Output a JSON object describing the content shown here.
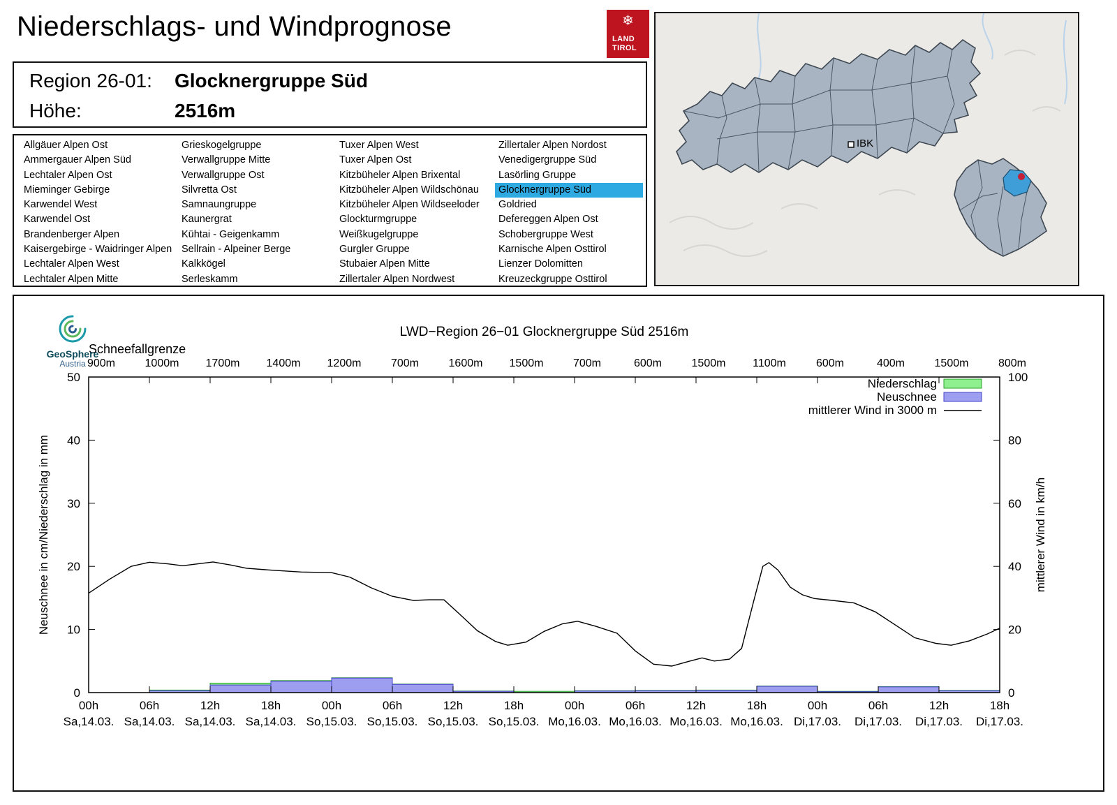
{
  "title": "Niederschlags- und Windprognose",
  "colors": {
    "accent_blue": "#2FA9E1",
    "tirol_red": "#BE1420",
    "bar_green": "#8EF08E",
    "bar_blue": "#9E9EF0"
  },
  "logo": {
    "snowflake_icon": "❄",
    "line1": "LAND",
    "line2": "TIROL"
  },
  "region_header": {
    "region_label": "Region 26-01:",
    "region_value": "Glocknergruppe Süd",
    "altitude_label": "Höhe:",
    "altitude_value": "2516m"
  },
  "region_list": {
    "selected": "Glocknergruppe Süd",
    "columns": [
      [
        "Allgäuer Alpen Ost",
        "Ammergauer Alpen Süd",
        "Lechtaler Alpen Ost",
        "Mieminger Gebirge",
        "Karwendel West",
        "Karwendel Ost",
        "Brandenberger Alpen",
        "Kaisergebirge - Waidringer Alpen",
        "Lechtaler Alpen West",
        "Lechtaler Alpen Mitte"
      ],
      [
        "Grieskogelgruppe",
        "Verwallgruppe Mitte",
        "Verwallgruppe Ost",
        "Silvretta Ost",
        "Samnaungruppe",
        "Kaunergrat",
        "Kühtai - Geigenkamm",
        "Sellrain - Alpeiner Berge",
        "Kalkkögel",
        "Serleskamm"
      ],
      [
        "Tuxer Alpen West",
        "Tuxer Alpen Ost",
        "Kitzbüheler Alpen Brixental",
        "Kitzbüheler Alpen Wildschönau",
        "Kitzbüheler Alpen Wildseeloder",
        "Glockturmgruppe",
        "Weißkugelgruppe",
        "Gurgler Gruppe",
        "Stubaier Alpen Mitte",
        "Zillertaler Alpen Nordwest"
      ],
      [
        "Zillertaler Alpen Nordost",
        "Venedigergruppe Süd",
        "Lasörling Gruppe",
        "Glocknergruppe Süd",
        "Goldried",
        "Defereggen Alpen Ost",
        "Schobergruppe West",
        "Karnische Alpen Osttirol",
        "Lienzer Dolomitten",
        "Kreuzeckgruppe Osttirol"
      ]
    ]
  },
  "map": {
    "city_label": "IBK"
  },
  "geosphere": {
    "name": "GeoSphere",
    "country": "Austria"
  },
  "chart_data": {
    "type": "bar+line",
    "title": "LWD−Region 26−01 Glocknergruppe Süd 2516m",
    "snowline_label": "Schneefallgrenze",
    "snowline_values": [
      "900m",
      "1000m",
      "1700m",
      "1400m",
      "1200m",
      "700m",
      "1600m",
      "1500m",
      "700m",
      "600m",
      "1500m",
      "1100m",
      "600m",
      "400m",
      "1500m",
      "800m"
    ],
    "x_ticks": [
      {
        "time": "00h",
        "date": "Sa,14.03."
      },
      {
        "time": "06h",
        "date": "Sa,14.03."
      },
      {
        "time": "12h",
        "date": "Sa,14.03."
      },
      {
        "time": "18h",
        "date": "Sa,14.03."
      },
      {
        "time": "00h",
        "date": "So,15.03."
      },
      {
        "time": "06h",
        "date": "So,15.03."
      },
      {
        "time": "12h",
        "date": "So,15.03."
      },
      {
        "time": "18h",
        "date": "So,15.03."
      },
      {
        "time": "00h",
        "date": "Mo,16.03."
      },
      {
        "time": "06h",
        "date": "Mo,16.03."
      },
      {
        "time": "12h",
        "date": "Mo,16.03."
      },
      {
        "time": "18h",
        "date": "Mo,16.03."
      },
      {
        "time": "00h",
        "date": "Di,17.03."
      },
      {
        "time": "06h",
        "date": "Di,17.03."
      },
      {
        "time": "12h",
        "date": "Di,17.03."
      },
      {
        "time": "18h",
        "date": "Di,17.03."
      }
    ],
    "ylabel_left": "Neuschnee in cm/Niederschlag in mm",
    "ylabel_right": "mittlerer Wind in km/h",
    "ylim_left": [
      0,
      50
    ],
    "ylim_right": [
      0,
      100
    ],
    "y_ticks_left": [
      0,
      10,
      20,
      30,
      40,
      50
    ],
    "y_ticks_right": [
      0,
      20,
      40,
      60,
      80,
      100
    ],
    "legend": [
      {
        "label": "Niederschlag",
        "type": "box",
        "fill": "#8EF08E",
        "stroke": "#2CA02C"
      },
      {
        "label": "Neuschnee",
        "type": "box",
        "fill": "#9E9EF0",
        "stroke": "#4444CC"
      },
      {
        "label": "mittlerer Wind in 3000 m",
        "type": "line",
        "stroke": "#000000"
      }
    ],
    "series": {
      "niederschlag_mm": [
        0,
        0.4,
        1.5,
        1.9,
        2.35,
        1.35,
        0.25,
        0.2,
        0.3,
        0.35,
        0.4,
        1.05,
        0.2,
        0.95,
        0.35
      ],
      "neuschnee_cm": [
        0,
        0.3,
        1.2,
        1.8,
        2.3,
        1.3,
        0.2,
        0,
        0.25,
        0.3,
        0.35,
        1.0,
        0.15,
        0.9,
        0.3
      ],
      "wind_kmh_points": [
        [
          0,
          31.5
        ],
        [
          0.35,
          36
        ],
        [
          0.7,
          40
        ],
        [
          1.0,
          41.3
        ],
        [
          1.3,
          40.8
        ],
        [
          1.55,
          40.2
        ],
        [
          1.8,
          40.8
        ],
        [
          2.05,
          41.4
        ],
        [
          2.35,
          40.4
        ],
        [
          2.6,
          39.4
        ],
        [
          3.0,
          38.8
        ],
        [
          3.5,
          38.2
        ],
        [
          4.0,
          38.0
        ],
        [
          4.3,
          36.6
        ],
        [
          4.65,
          33.2
        ],
        [
          5.0,
          30.5
        ],
        [
          5.35,
          29.2
        ],
        [
          5.6,
          29.4
        ],
        [
          5.85,
          29.4
        ],
        [
          6.1,
          25.0
        ],
        [
          6.4,
          19.6
        ],
        [
          6.7,
          16.2
        ],
        [
          6.9,
          15.0
        ],
        [
          7.2,
          16.0
        ],
        [
          7.5,
          19.4
        ],
        [
          7.8,
          21.8
        ],
        [
          8.05,
          22.6
        ],
        [
          8.35,
          21.0
        ],
        [
          8.7,
          18.8
        ],
        [
          9.0,
          13.2
        ],
        [
          9.3,
          9.0
        ],
        [
          9.6,
          8.4
        ],
        [
          9.9,
          10.0
        ],
        [
          10.1,
          11.0
        ],
        [
          10.3,
          10.0
        ],
        [
          10.55,
          10.6
        ],
        [
          10.75,
          14.0
        ],
        [
          10.95,
          29.0
        ],
        [
          11.1,
          40.0
        ],
        [
          11.2,
          41.2
        ],
        [
          11.35,
          38.8
        ],
        [
          11.55,
          33.4
        ],
        [
          11.75,
          31.0
        ],
        [
          11.95,
          29.8
        ],
        [
          12.25,
          29.2
        ],
        [
          12.6,
          28.4
        ],
        [
          12.95,
          25.6
        ],
        [
          13.3,
          21.2
        ],
        [
          13.6,
          17.4
        ],
        [
          13.95,
          15.6
        ],
        [
          14.2,
          15.0
        ],
        [
          14.5,
          16.4
        ],
        [
          14.8,
          18.6
        ],
        [
          15,
          20.4
        ]
      ]
    }
  }
}
